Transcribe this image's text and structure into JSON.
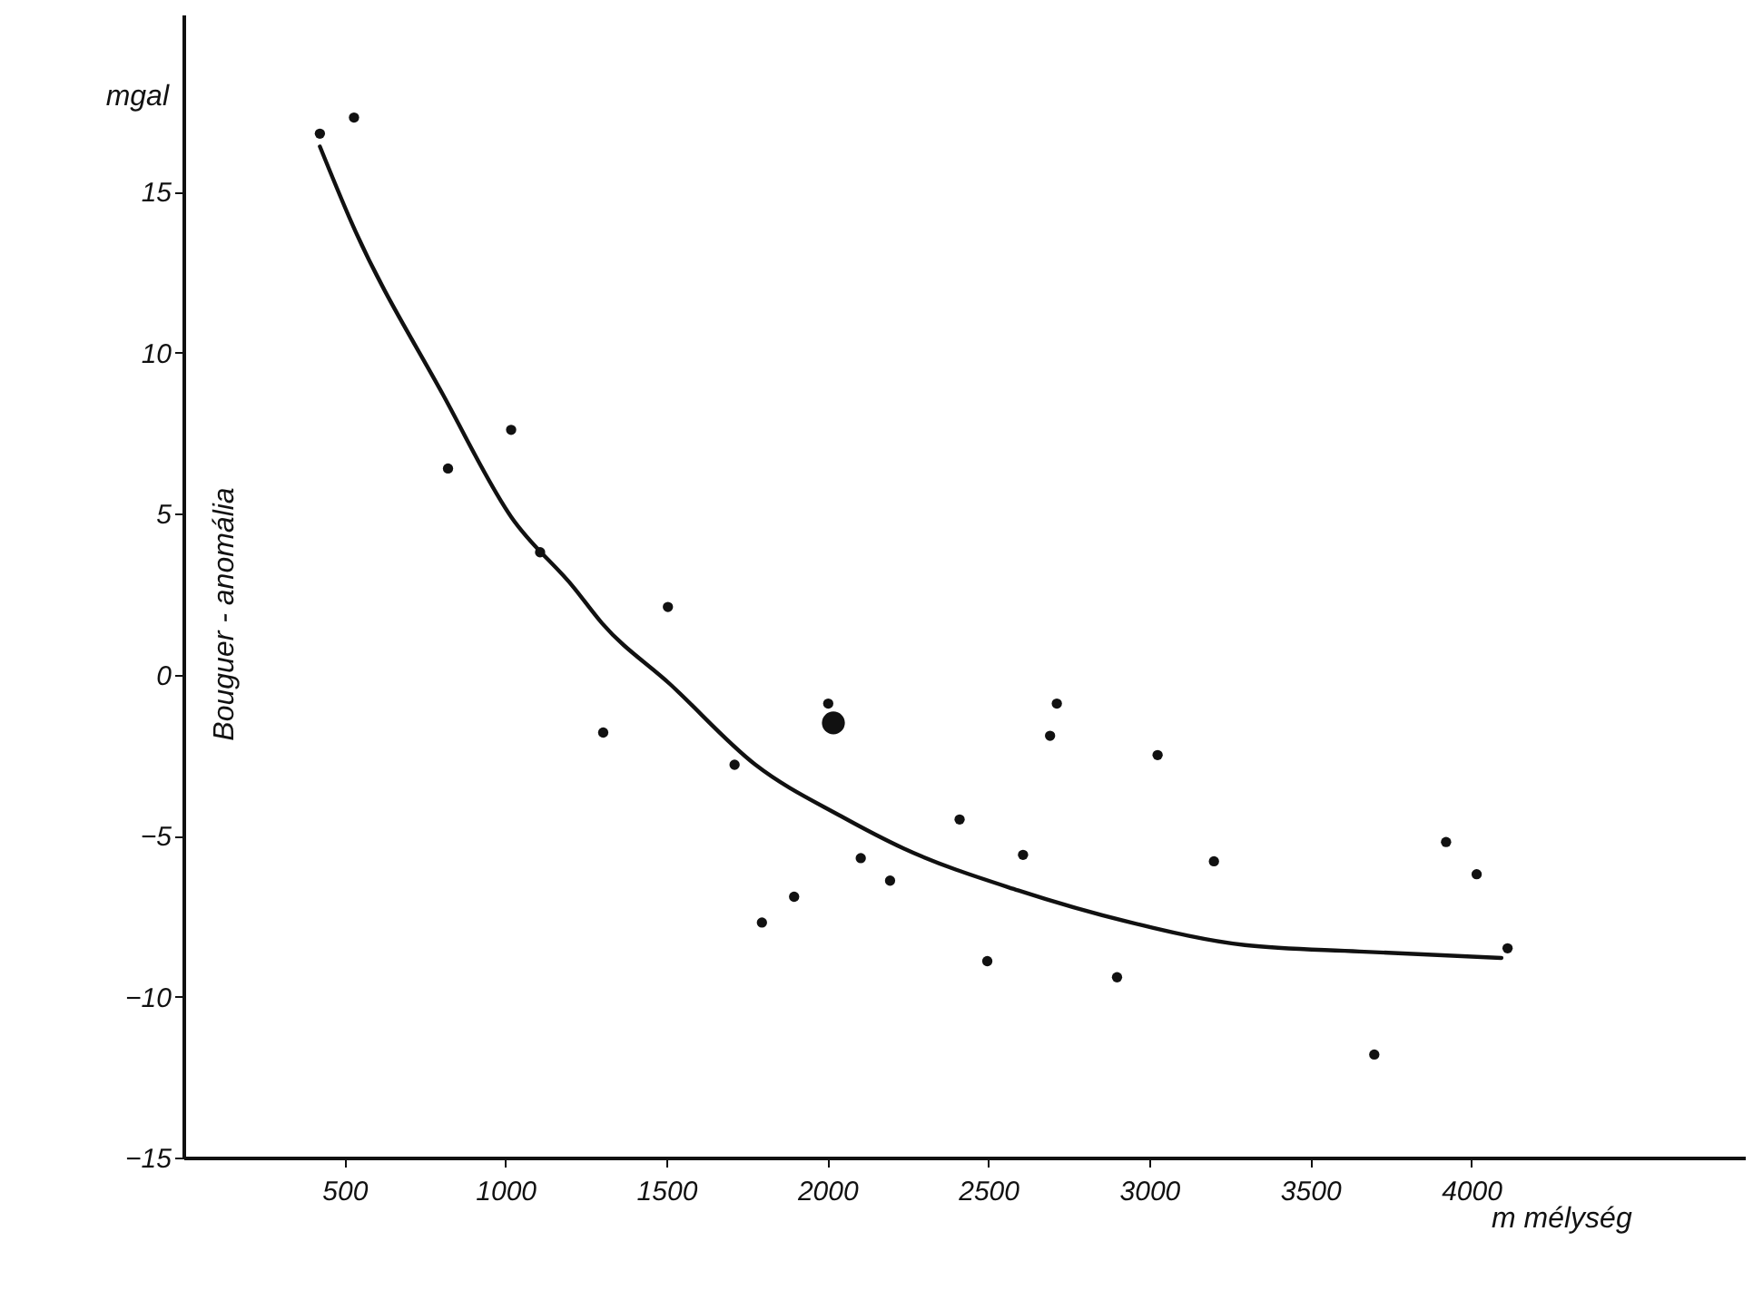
{
  "chart_data": {
    "type": "bubble",
    "ylabel": "Bouguer - anomália",
    "xlabel": "m mélység",
    "annotations": [
      "mgal"
    ],
    "xlim": [
      0,
      4850
    ],
    "ylim": [
      -15,
      20.5
    ],
    "xticks": [
      500,
      1000,
      1500,
      2000,
      2500,
      3000,
      3500,
      4000
    ],
    "yticks": [
      -15,
      -10,
      -5,
      0,
      5,
      10,
      15
    ],
    "grid": false,
    "series": [
      {
        "color": "#111111",
        "x": [
          424,
          530,
          822,
          1018,
          1108,
          1505,
          1304,
          1712,
          2003,
          2019,
          1797,
          1897,
          2104,
          2195,
          2411,
          2497,
          2608,
          2692,
          2713,
          2900,
          3026,
          3201,
          3699,
          3922,
          4017,
          4113
        ],
        "values": [
          16.8,
          17.3,
          6.4,
          7.6,
          3.8,
          2.1,
          -1.8,
          -2.8,
          -0.9,
          -1.5,
          -7.7,
          -6.9,
          -5.7,
          -6.4,
          -4.5,
          -8.9,
          -5.6,
          -1.9,
          -0.9,
          -9.4,
          -2.5,
          -5.8,
          -11.8,
          -5.2,
          -6.2,
          -8.5
        ],
        "sizes": [
          0.2,
          0.2,
          0.2,
          0.2,
          0.2,
          0.2,
          0.2,
          0.2,
          0.2,
          1,
          0.2,
          0.2,
          0.2,
          0.2,
          0.2,
          0.2,
          0.2,
          0.2,
          0.2,
          0.2,
          0.2,
          0.2,
          0.2,
          0.2,
          0.2,
          0.2
        ]
      },
      {
        "type": "line",
        "color": "#111111",
        "marker": "none",
        "line_style": "solid",
        "x": [
          424,
          524,
          806,
          1018,
          1213,
          1300,
          1512,
          1777,
          2043,
          2237,
          2592,
          2943,
          3297,
          3652,
          4094
        ],
        "values": [
          16.4,
          14.0,
          8.7,
          4.9,
          2.7,
          1.6,
          -0.3,
          -2.8,
          -4.4,
          -5.4,
          -6.7,
          -7.7,
          -8.4,
          -8.6,
          -8.8
        ]
      }
    ]
  }
}
